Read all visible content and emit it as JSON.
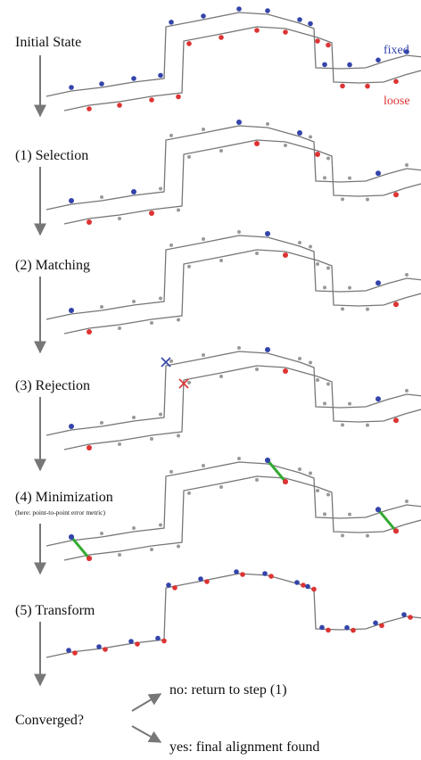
{
  "steps": [
    {
      "label": "Initial State"
    },
    {
      "label": "(1) Selection"
    },
    {
      "label": "(2) Matching"
    },
    {
      "label": "(3) Rejection"
    },
    {
      "label": "(4) Minimization",
      "note": "(here: point-to-point error metric)"
    },
    {
      "label": "(5) Transform"
    }
  ],
  "legend": {
    "fixed": "fixed",
    "loose": "loose"
  },
  "decision": {
    "question": "Converged?",
    "no": "no:  return to step (1)",
    "yes": "yes: final alignment found"
  },
  "colors": {
    "fixed": "#3344aa",
    "loose": "#dd3333",
    "sample": "#999999",
    "curve": "#777777",
    "link": "#33aa33",
    "arrow": "#777777",
    "text": "#111111"
  }
}
